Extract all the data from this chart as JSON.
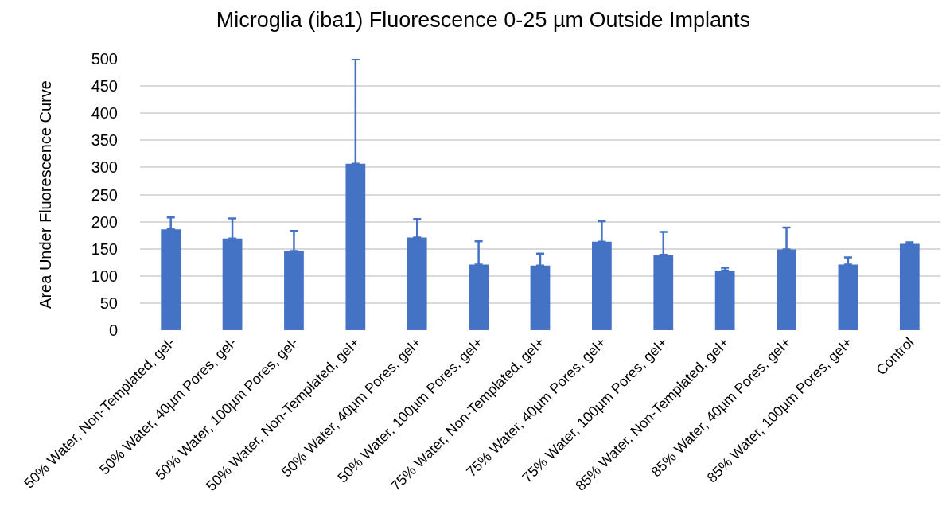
{
  "chart_data": {
    "type": "bar",
    "title": "Microglia (iba1) Fluorescence 0-25 µm Outside Implants",
    "ylabel": "Area Under Fluorescence Curve",
    "categories": [
      "50% Water, Non-Templated, gel-",
      "50% Water, 40µm Pores, gel-",
      "50% Water, 100µm Pores, gel-",
      "50% Water, Non-Templated, gel+",
      "50% Water, 40µm Pores, gel+",
      "50% Water, 100µm Pores, gel+",
      "75% Water, Non-Templated, gel+",
      "75% Water, 40µm Pores, gel+",
      "75% Water, 100µm Pores, gel+",
      "85% Water, Non-Templated, gel+",
      "85% Water, 40µm Pores, gel+",
      "85% Water, 100µm Pores, gel+",
      "Control"
    ],
    "values": [
      186,
      169,
      146,
      307,
      171,
      121,
      119,
      163,
      139,
      110,
      149,
      121,
      159
    ],
    "errors": [
      [
        186,
        208
      ],
      [
        169,
        206
      ],
      [
        146,
        183
      ],
      [
        307,
        499
      ],
      [
        171,
        205
      ],
      [
        121,
        164
      ],
      [
        119,
        141
      ],
      [
        163,
        201
      ],
      [
        139,
        181
      ],
      [
        110,
        115
      ],
      [
        149,
        189
      ],
      [
        121,
        134
      ],
      [
        159,
        162
      ]
    ],
    "color": "#4472c4",
    "ylim": [
      0,
      500
    ],
    "yticks": [
      0,
      50,
      100,
      150,
      200,
      250,
      300,
      350,
      400,
      450,
      500
    ],
    "grid": "y"
  }
}
